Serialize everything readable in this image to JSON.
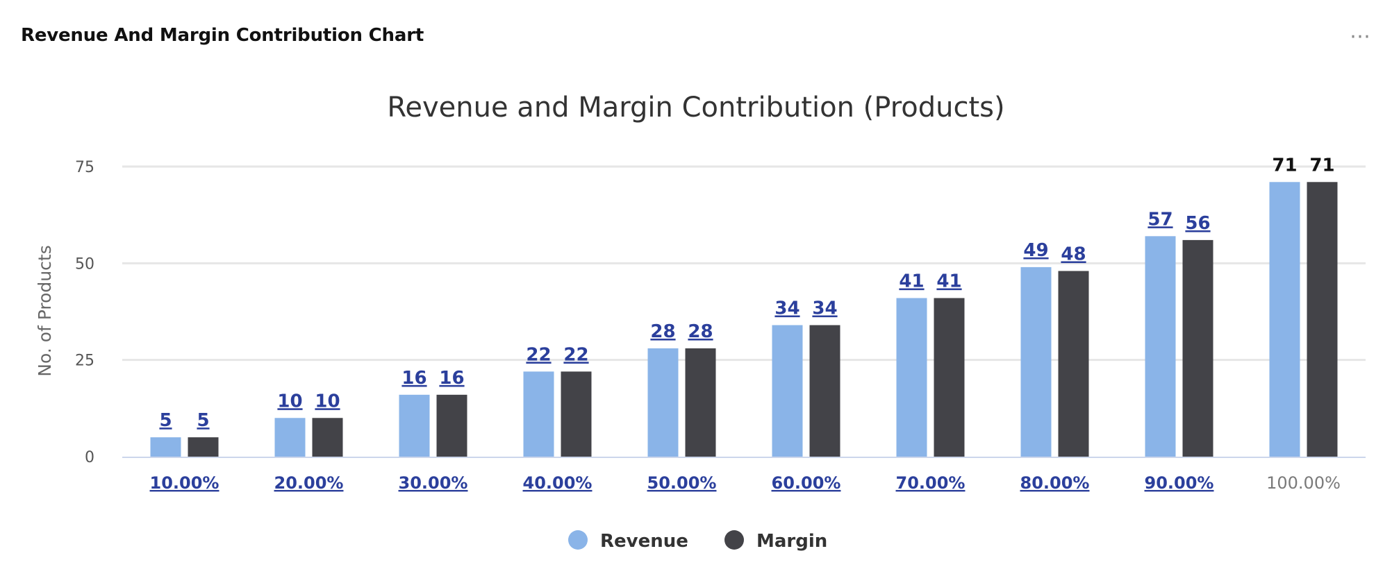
{
  "panel": {
    "title": "Revenue And Margin Contribution Chart",
    "menu_icon": "more-horizontal-icon",
    "menu_glyph": "⋯"
  },
  "colors": {
    "revenue": "#8ab4e8",
    "margin": "#434348",
    "link": "#2b3f9c",
    "grid": "#e6e6e6",
    "axis_line": "#ccd6eb"
  },
  "chart_data": {
    "type": "bar",
    "title": "Revenue and Margin Contribution (Products)",
    "xlabel": "",
    "ylabel": "No. of Products",
    "ylim": [
      0,
      75
    ],
    "yticks": [
      0,
      25,
      50,
      75
    ],
    "grid": true,
    "legend_position": "bottom-center",
    "categories": [
      "10.00%",
      "20.00%",
      "30.00%",
      "40.00%",
      "50.00%",
      "60.00%",
      "70.00%",
      "80.00%",
      "90.00%",
      "100.00%"
    ],
    "series": [
      {
        "name": "Revenue",
        "values": [
          5,
          10,
          16,
          22,
          28,
          34,
          41,
          49,
          57,
          71
        ]
      },
      {
        "name": "Margin",
        "values": [
          5,
          10,
          16,
          22,
          28,
          34,
          41,
          48,
          56,
          71
        ]
      }
    ]
  }
}
